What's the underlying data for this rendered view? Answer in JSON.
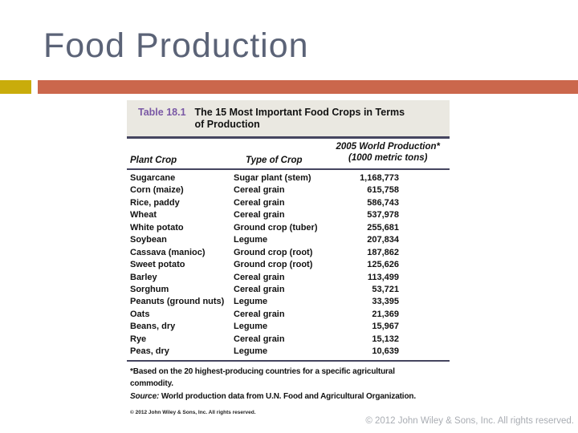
{
  "slide": {
    "title": "Food Production",
    "footer": "© 2012 John Wiley & Sons, Inc. All rights reserved.",
    "title_color": "#5B6377",
    "accent_orange": "#CB674C",
    "accent_yellow": "#C9AC0B",
    "footer_color": "#A9ADB3"
  },
  "table": {
    "label": "Table 18.1",
    "label_color": "#7A58A5",
    "header_bg": "#EAE8E1",
    "rule_color": "#45455F",
    "title_line1": "The 15 Most Important Food Crops in Terms",
    "title_line2": "of Production",
    "columns": {
      "col1": "Plant Crop",
      "col2": "Type of Crop",
      "col3_line1": "2005 World Production*",
      "col3_line2": "(1000 metric tons)"
    },
    "rows": [
      {
        "crop": "Sugarcane",
        "type": "Sugar plant (stem)",
        "value": "1,168,773"
      },
      {
        "crop": "Corn (maize)",
        "type": "Cereal grain",
        "value": "615,758"
      },
      {
        "crop": "Rice, paddy",
        "type": "Cereal grain",
        "value": "586,743"
      },
      {
        "crop": "Wheat",
        "type": "Cereal grain",
        "value": "537,978"
      },
      {
        "crop": "White potato",
        "type": "Ground crop (tuber)",
        "value": "255,681"
      },
      {
        "crop": "Soybean",
        "type": "Legume",
        "value": "207,834"
      },
      {
        "crop": "Cassava (manioc)",
        "type": "Ground crop (root)",
        "value": "187,862"
      },
      {
        "crop": "Sweet potato",
        "type": "Ground crop (root)",
        "value": "125,626"
      },
      {
        "crop": "Barley",
        "type": "Cereal grain",
        "value": "113,499"
      },
      {
        "crop": "Sorghum",
        "type": "Cereal grain",
        "value": "53,721"
      },
      {
        "crop": "Peanuts (ground nuts)",
        "type": "Legume",
        "value": "33,395"
      },
      {
        "crop": "Oats",
        "type": "Cereal grain",
        "value": "21,369"
      },
      {
        "crop": "Beans, dry",
        "type": "Legume",
        "value": "15,967"
      },
      {
        "crop": "Rye",
        "type": "Cereal grain",
        "value": "15,132"
      },
      {
        "crop": "Peas, dry",
        "type": "Legume",
        "value": "10,639"
      }
    ],
    "footnote_line1": "*Based on the 20 highest-producing countries for a specific agricultural",
    "footnote_line2": "commodity.",
    "source_label": "Source:",
    "source_text": " World production data from U.N. Food and Agricultural Organization.",
    "copyright": "© 2012 John Wiley & Sons, Inc. All rights reserved."
  },
  "chart_data": {
    "type": "table",
    "title": "Table 18.1 The 15 Most Important Food Crops in Terms of Production",
    "columns": [
      "Plant Crop",
      "Type of Crop",
      "2005 World Production* (1000 metric tons)"
    ],
    "rows": [
      [
        "Sugarcane",
        "Sugar plant (stem)",
        1168773
      ],
      [
        "Corn (maize)",
        "Cereal grain",
        615758
      ],
      [
        "Rice, paddy",
        "Cereal grain",
        586743
      ],
      [
        "Wheat",
        "Cereal grain",
        537978
      ],
      [
        "White potato",
        "Ground crop (tuber)",
        255681
      ],
      [
        "Soybean",
        "Legume",
        207834
      ],
      [
        "Cassava (manioc)",
        "Ground crop (root)",
        187862
      ],
      [
        "Sweet potato",
        "Ground crop (root)",
        125626
      ],
      [
        "Barley",
        "Cereal grain",
        113499
      ],
      [
        "Sorghum",
        "Cereal grain",
        53721
      ],
      [
        "Peanuts (ground nuts)",
        "Legume",
        33395
      ],
      [
        "Oats",
        "Cereal grain",
        21369
      ],
      [
        "Beans, dry",
        "Legume",
        15967
      ],
      [
        "Rye",
        "Cereal grain",
        15132
      ],
      [
        "Peas, dry",
        "Legume",
        10639
      ]
    ]
  }
}
